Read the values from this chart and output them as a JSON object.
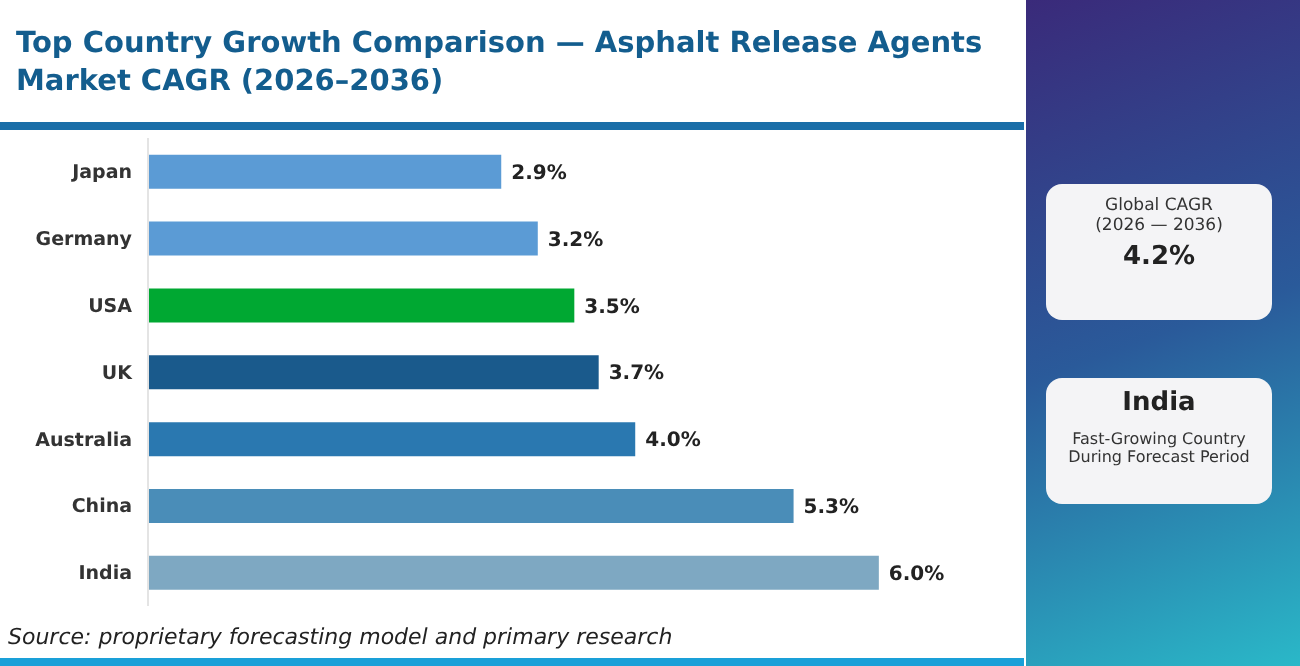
{
  "chart_data": [
    {
      "type": "bar",
      "orientation": "horizontal",
      "title": "Top Country Growth Comparison — Asphalt Release Agents Market CAGR (2026–2036)",
      "categories": [
        "Japan",
        "Germany",
        "USA",
        "UK",
        "Australia",
        "China",
        "India"
      ],
      "values": [
        2.9,
        3.2,
        3.5,
        3.7,
        4.0,
        5.3,
        6.0
      ],
      "value_labels": [
        "2.9%",
        "3.2%",
        "3.5%",
        "3.7%",
        "4.0%",
        "5.3%",
        "6.0%"
      ],
      "colors": [
        "#5b9bd5",
        "#5b9bd5",
        "#00a832",
        "#1a5a8c",
        "#2a78b0",
        "#4a8db8",
        "#7ea8c2"
      ],
      "tick_labels": "y",
      "grid": false,
      "legend": false,
      "annotations": [
        "Source: proprietary forecasting model and primary research"
      ]
    },
    {
      "type": "other",
      "annotations": [
        "Global CAGR",
        "(2026 — 2036)",
        "4.2%",
        "India",
        "Fast-Growing Country",
        "During Forecast Period"
      ]
    }
  ]
}
